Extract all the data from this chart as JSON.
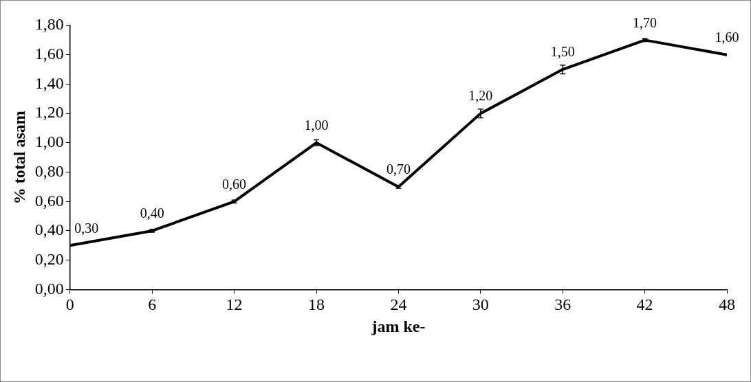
{
  "chart_data": {
    "type": "line",
    "xlabel": "jam ke-",
    "ylabel": "% total asam",
    "x": [
      0,
      6,
      12,
      18,
      24,
      30,
      36,
      42,
      48
    ],
    "values": [
      0.3,
      0.4,
      0.6,
      1.0,
      0.7,
      1.2,
      1.5,
      1.7,
      1.6
    ],
    "errors": [
      null,
      0.01,
      0.01,
      0.02,
      0.01,
      0.03,
      0.03,
      0.01,
      null
    ],
    "value_labels": [
      "0,30",
      "0,40",
      "0,60",
      "1,00",
      "0,70",
      "1,20",
      "1,50",
      "1,70",
      "1,60"
    ],
    "color": "#000000",
    "marker": "none",
    "line_style": "solid",
    "grid": false,
    "legend": false,
    "xlim": [
      0,
      48
    ],
    "xticks": [
      0,
      6,
      12,
      18,
      24,
      30,
      36,
      42,
      48
    ],
    "ylim": [
      0,
      1.8
    ],
    "yticks": [
      {
        "value": 0,
        "label": "0,00"
      },
      {
        "value": 0.2,
        "label": "0,20"
      },
      {
        "value": 0.4,
        "label": "0,40"
      },
      {
        "value": 0.6,
        "label": "0,60"
      },
      {
        "value": 0.8,
        "label": "0,80"
      },
      {
        "value": 1.0,
        "label": "1,00"
      },
      {
        "value": 1.2,
        "label": "1,20"
      },
      {
        "value": 1.4,
        "label": "1,40"
      },
      {
        "value": 1.6,
        "label": "1,60"
      },
      {
        "value": 1.8,
        "label": "1,80"
      }
    ]
  }
}
